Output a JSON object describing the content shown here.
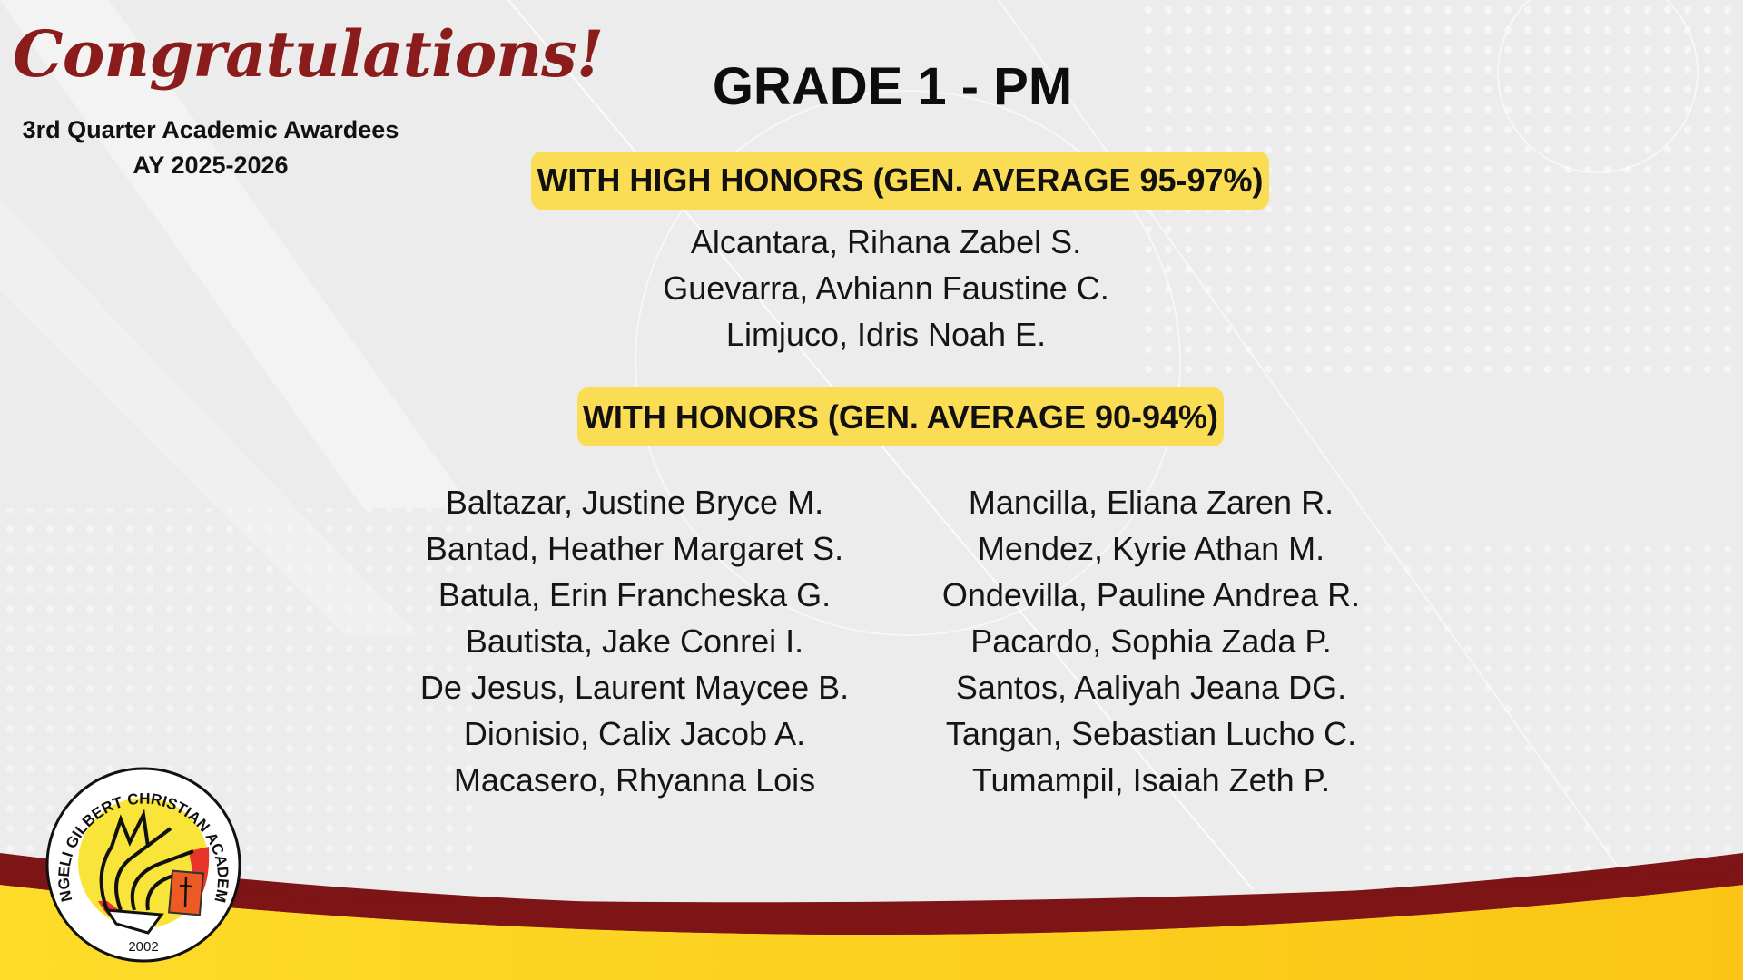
{
  "header": {
    "congrats": "Congratulations!",
    "subtitle": "3rd Quarter Academic Awardees",
    "academic_year": "AY 2025-2026",
    "grade": "GRADE 1 - PM"
  },
  "high_honors": {
    "label": "WITH HIGH HONORS (GEN. AVERAGE 95-97%)",
    "names": [
      "Alcantara, Rihana Zabel S.",
      "Guevarra, Avhiann Faustine C.",
      "Limjuco, Idris Noah E."
    ]
  },
  "honors": {
    "label": "WITH HONORS (GEN. AVERAGE 90-94%)",
    "left": [
      "Baltazar, Justine Bryce M.",
      "Bantad, Heather Margaret S.",
      "Batula, Erin Francheska G.",
      "Bautista, Jake Conrei I.",
      "De Jesus, Laurent Maycee B.",
      "Dionisio, Calix Jacob A.",
      "Macasero, Rhyanna Lois"
    ],
    "right": [
      "Mancilla, Eliana Zaren R.",
      "Mendez, Kyrie Athan M.",
      "Ondevilla, Pauline Andrea R.",
      "Pacardo, Sophia Zada P.",
      "Santos, Aaliyah Jeana DG.",
      "Tangan, Sebastian Lucho C.",
      "Tumampil, Isaiah Zeth P."
    ]
  },
  "logo": {
    "ring_text": "ANGELI GILBERT CHRISTIAN ACADEMY",
    "year": "2002"
  },
  "colors": {
    "maroon": "#7d1416",
    "yellow": "#fdd31f",
    "badge": "#fbdc55",
    "title_red": "#8a1c1c"
  }
}
